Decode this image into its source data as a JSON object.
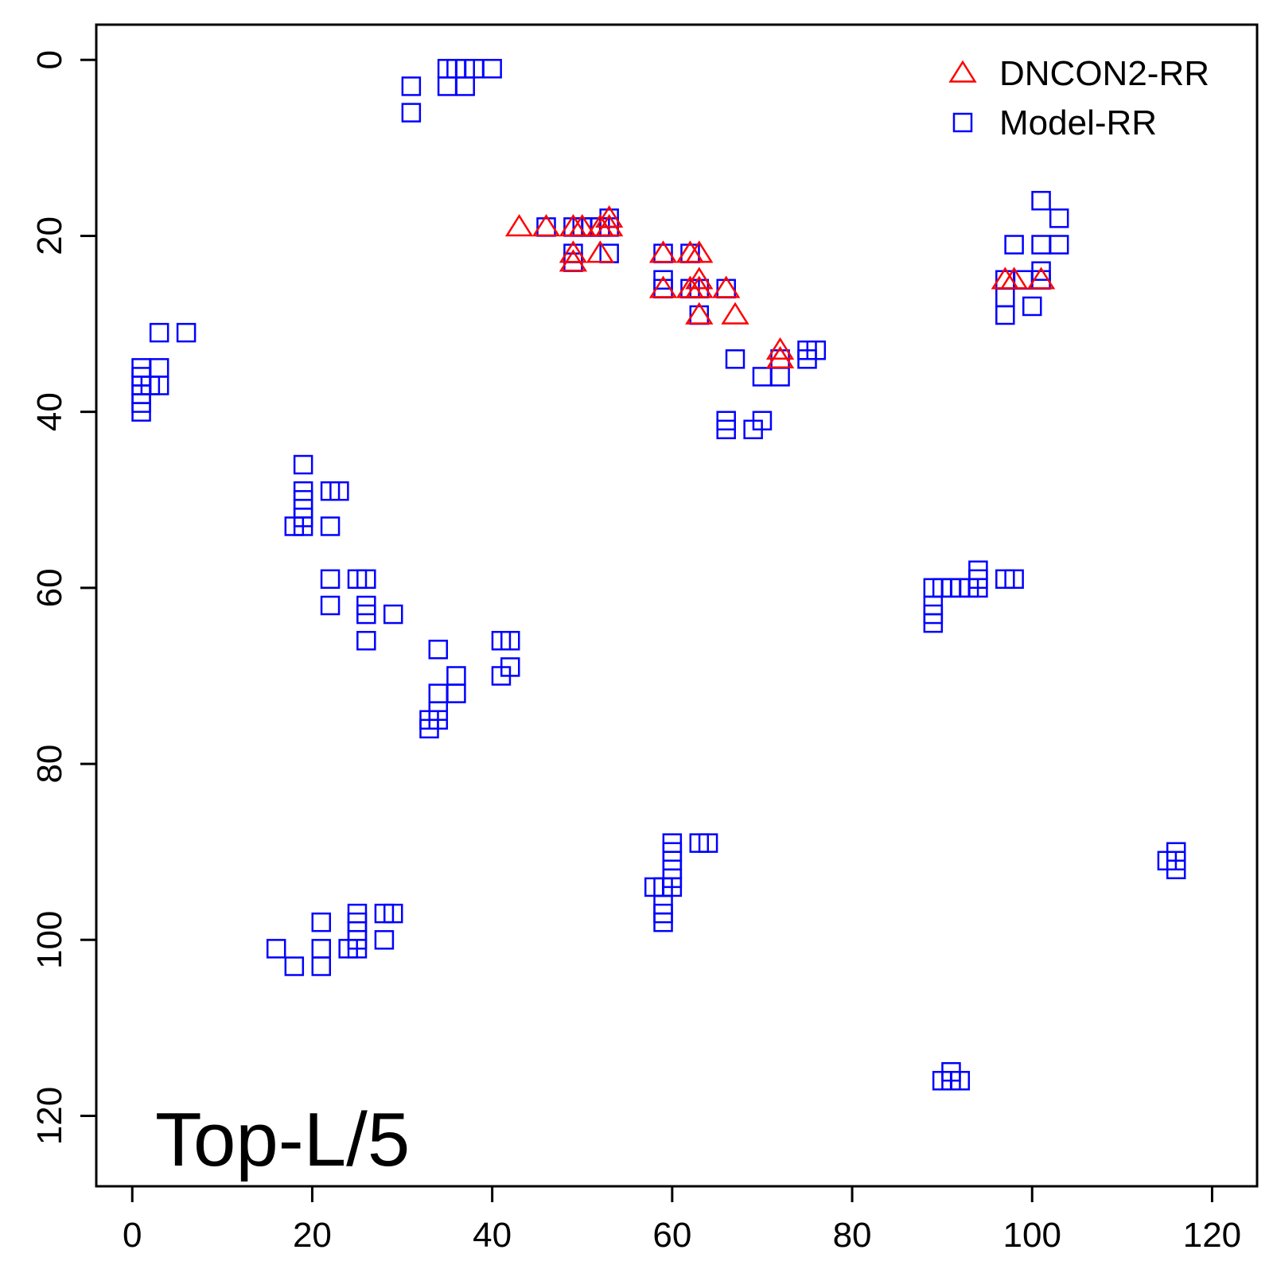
{
  "chart_data": {
    "type": "scatter",
    "title": "",
    "xlabel": "",
    "ylabel": "",
    "xlim": [
      -4,
      125
    ],
    "ylim": [
      128,
      -4
    ],
    "y_reversed": true,
    "x_ticks": [
      "0",
      "20",
      "40",
      "60",
      "80",
      "100",
      "120"
    ],
    "y_ticks": [
      "0",
      "20",
      "40",
      "60",
      "80",
      "100",
      "120"
    ],
    "annotation": "Top-L/5",
    "legend": {
      "position": "top-right"
    },
    "series": [
      {
        "name": "DNCON2-RR",
        "marker": "triangle",
        "color": "#ff0000",
        "points": [
          [
            43,
            19
          ],
          [
            46,
            19
          ],
          [
            49,
            19
          ],
          [
            50,
            19
          ],
          [
            52,
            19
          ],
          [
            53,
            19
          ],
          [
            53,
            18
          ],
          [
            49,
            22
          ],
          [
            49,
            23
          ],
          [
            52,
            22
          ],
          [
            59,
            22
          ],
          [
            62,
            22
          ],
          [
            63,
            22
          ],
          [
            59,
            26
          ],
          [
            62,
            26
          ],
          [
            63,
            26
          ],
          [
            66,
            26
          ],
          [
            63,
            25
          ],
          [
            63,
            29
          ],
          [
            67,
            29
          ],
          [
            72,
            33
          ],
          [
            72,
            34
          ],
          [
            97,
            25
          ],
          [
            98,
            25
          ],
          [
            101,
            25
          ]
        ]
      },
      {
        "name": "Model-RR",
        "marker": "square",
        "color": "#0000ff",
        "points": [
          [
            31,
            3
          ],
          [
            31,
            6
          ],
          [
            35,
            1
          ],
          [
            36,
            1
          ],
          [
            37,
            1
          ],
          [
            38,
            1
          ],
          [
            40,
            1
          ],
          [
            35,
            3
          ],
          [
            37,
            3
          ],
          [
            46,
            19
          ],
          [
            49,
            19
          ],
          [
            50,
            19
          ],
          [
            51,
            19
          ],
          [
            52,
            19
          ],
          [
            53,
            19
          ],
          [
            53,
            18
          ],
          [
            49,
            22
          ],
          [
            49,
            23
          ],
          [
            53,
            22
          ],
          [
            59,
            22
          ],
          [
            62,
            22
          ],
          [
            59,
            25
          ],
          [
            59,
            26
          ],
          [
            62,
            26
          ],
          [
            63,
            26
          ],
          [
            66,
            26
          ],
          [
            63,
            29
          ],
          [
            67,
            34
          ],
          [
            72,
            34
          ],
          [
            72,
            36
          ],
          [
            70,
            36
          ],
          [
            75,
            34
          ],
          [
            75,
            33
          ],
          [
            76,
            33
          ],
          [
            66,
            41
          ],
          [
            66,
            42
          ],
          [
            69,
            42
          ],
          [
            70,
            41
          ],
          [
            101,
            16
          ],
          [
            103,
            18
          ],
          [
            98,
            21
          ],
          [
            101,
            21
          ],
          [
            103,
            21
          ],
          [
            97,
            25
          ],
          [
            99,
            25
          ],
          [
            101,
            24
          ],
          [
            101,
            25
          ],
          [
            97,
            27
          ],
          [
            97,
            29
          ],
          [
            100,
            28
          ],
          [
            1,
            35
          ],
          [
            1,
            36
          ],
          [
            1,
            37
          ],
          [
            1,
            38
          ],
          [
            1,
            39
          ],
          [
            1,
            40
          ],
          [
            3,
            35
          ],
          [
            3,
            37
          ],
          [
            2,
            37
          ],
          [
            3,
            31
          ],
          [
            6,
            31
          ],
          [
            19,
            46
          ],
          [
            19,
            49
          ],
          [
            19,
            50
          ],
          [
            19,
            51
          ],
          [
            19,
            52
          ],
          [
            18,
            53
          ],
          [
            19,
            53
          ],
          [
            22,
            49
          ],
          [
            23,
            49
          ],
          [
            22,
            53
          ],
          [
            22,
            59
          ],
          [
            22,
            62
          ],
          [
            25,
            59
          ],
          [
            26,
            59
          ],
          [
            26,
            62
          ],
          [
            26,
            63
          ],
          [
            26,
            66
          ],
          [
            29,
            63
          ],
          [
            34,
            67
          ],
          [
            36,
            70
          ],
          [
            34,
            72
          ],
          [
            36,
            72
          ],
          [
            34,
            74
          ],
          [
            33,
            75
          ],
          [
            34,
            75
          ],
          [
            33,
            76
          ],
          [
            41,
            66
          ],
          [
            42,
            66
          ],
          [
            41,
            70
          ],
          [
            42,
            69
          ],
          [
            89,
            60
          ],
          [
            90,
            60
          ],
          [
            91,
            60
          ],
          [
            92,
            60
          ],
          [
            93,
            60
          ],
          [
            94,
            60
          ],
          [
            94,
            58
          ],
          [
            94,
            59
          ],
          [
            89,
            62
          ],
          [
            89,
            63
          ],
          [
            89,
            64
          ],
          [
            97,
            59
          ],
          [
            98,
            59
          ],
          [
            60,
            89
          ],
          [
            60,
            90
          ],
          [
            60,
            91
          ],
          [
            60,
            92
          ],
          [
            60,
            93
          ],
          [
            60,
            94
          ],
          [
            58,
            94
          ],
          [
            59,
            94
          ],
          [
            59,
            96
          ],
          [
            59,
            97
          ],
          [
            59,
            98
          ],
          [
            63,
            89
          ],
          [
            64,
            89
          ],
          [
            16,
            101
          ],
          [
            18,
            103
          ],
          [
            21,
            98
          ],
          [
            21,
            101
          ],
          [
            21,
            103
          ],
          [
            24,
            101
          ],
          [
            25,
            97
          ],
          [
            25,
            98
          ],
          [
            25,
            99
          ],
          [
            25,
            100
          ],
          [
            25,
            101
          ],
          [
            28,
            97
          ],
          [
            29,
            97
          ],
          [
            28,
            100
          ],
          [
            115,
            91
          ],
          [
            116,
            90
          ],
          [
            116,
            91
          ],
          [
            116,
            92
          ],
          [
            90,
            116
          ],
          [
            91,
            115
          ],
          [
            91,
            116
          ],
          [
            92,
            116
          ]
        ]
      }
    ]
  }
}
